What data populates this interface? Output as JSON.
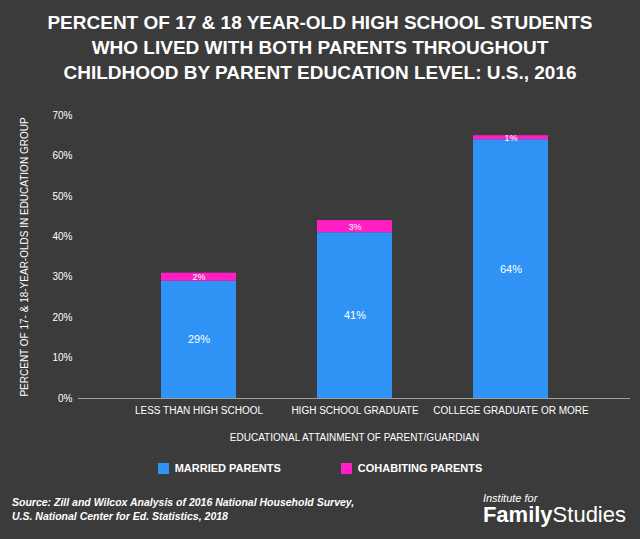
{
  "chart_data": {
    "type": "bar",
    "title": "PERCENT OF 17 & 18 YEAR-OLD HIGH SCHOOL STUDENTS\nWHO LIVED WITH BOTH PARENTS THROUGHOUT\nCHILDHOOD BY PARENT EDUCATION LEVEL: U.S., 2016",
    "x_label": "EDUCATIONAL ATTAINMENT OF PARENT/GUARDIAN",
    "y_label": "PERCENT OF 17- & 18-YEAR-OLDS IN EDUCATION GROUP",
    "categories": [
      "LESS THAN HIGH SCHOOL",
      "HIGH SCHOOL GRADUATE",
      "COLLEGE GRADUATE OR MORE"
    ],
    "series": [
      {
        "name": "MARRIED PARENTS",
        "color": "#2e93f5",
        "values": [
          29,
          41,
          64
        ],
        "value_labels": [
          "29%",
          "41%",
          "64%"
        ]
      },
      {
        "name": "COHABITING PARENTS",
        "color": "#ff1fc4",
        "values": [
          2,
          3,
          1
        ],
        "value_labels": [
          "2%",
          "3%",
          "1%"
        ]
      }
    ],
    "stacked": true,
    "data_labels": true,
    "grid": false,
    "legend": "bottom",
    "ylim": [
      0,
      70
    ],
    "yticks": [
      {
        "value": 0,
        "label": "0%"
      },
      {
        "value": 10,
        "label": "10%"
      },
      {
        "value": 20,
        "label": "20%"
      },
      {
        "value": 30,
        "label": "30%"
      },
      {
        "value": 40,
        "label": "40%"
      },
      {
        "value": 50,
        "label": "50%"
      },
      {
        "value": 60,
        "label": "60%"
      },
      {
        "value": 70,
        "label": "70%"
      }
    ],
    "source": "Source: Zill and Wilcox Analysis of 2016 National Household Survey,\nU.S. National Center for Ed. Statistics, 2018",
    "logo": [
      "Institute for",
      "Family",
      "Studies"
    ]
  }
}
